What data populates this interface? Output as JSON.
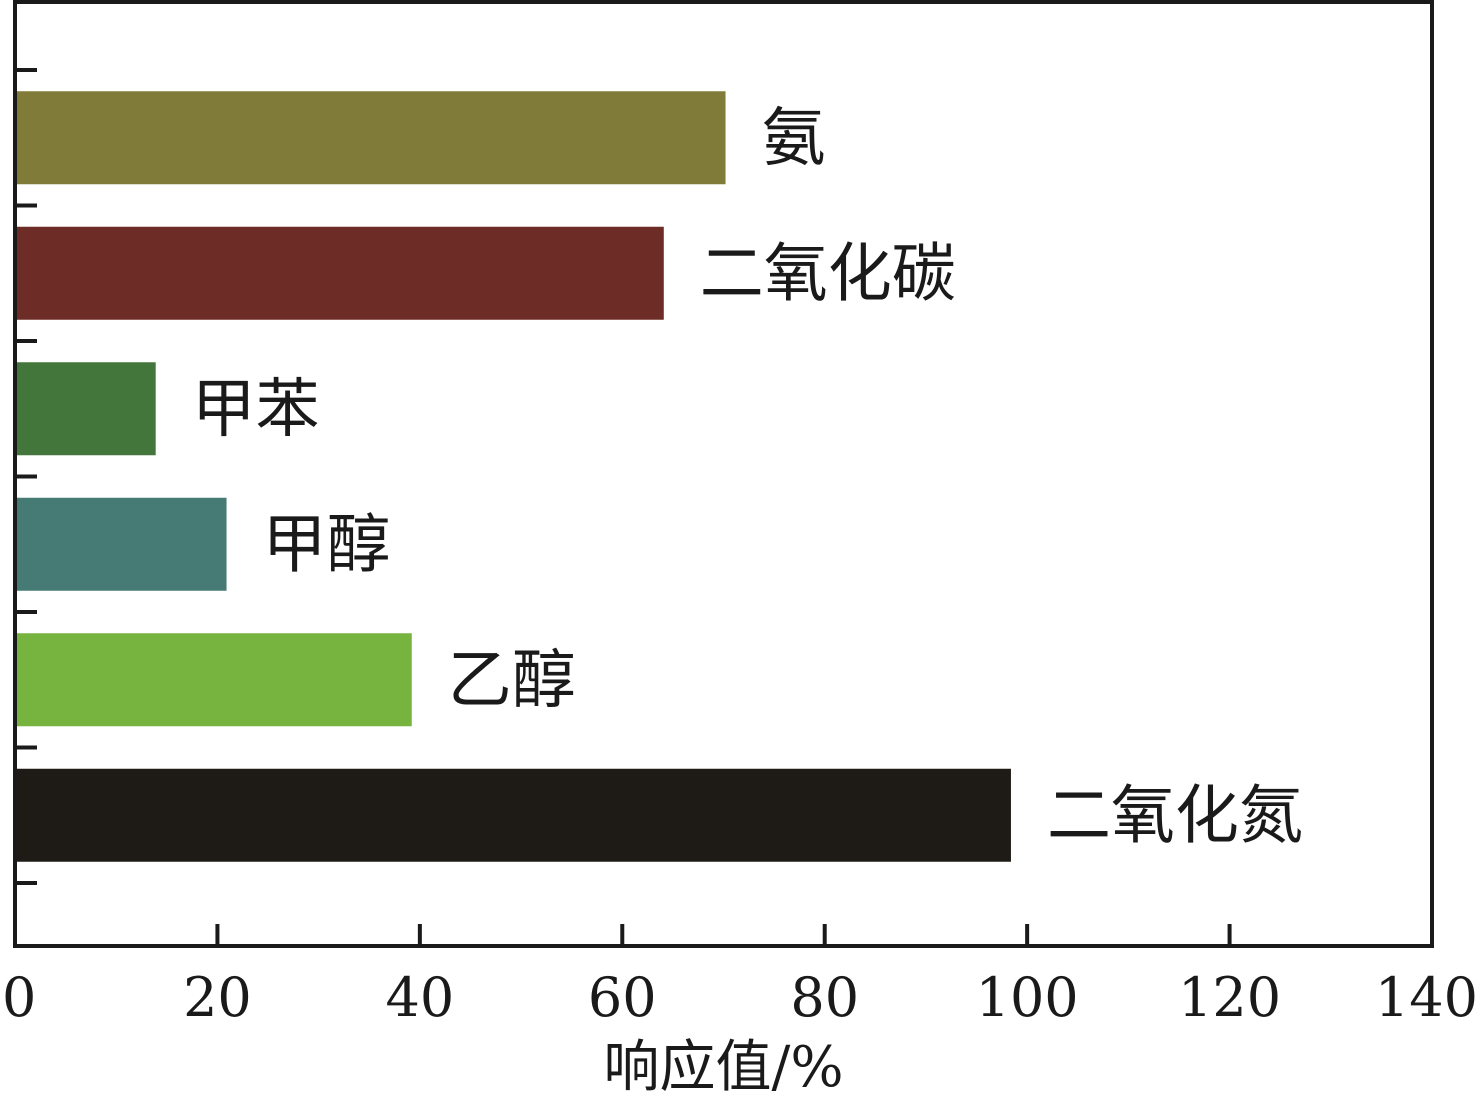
{
  "chart_data": {
    "type": "bar",
    "orientation": "horizontal",
    "categories": [
      "氨",
      "二氧化碳",
      "甲苯",
      "甲醇",
      "乙醇",
      "二氧化氮"
    ],
    "values": [
      70.2,
      64.1,
      13.9,
      20.9,
      39.2,
      98.4
    ],
    "colors": [
      "#817b39",
      "#6d2d26",
      "#43763a",
      "#467a74",
      "#77b43f",
      "#1e1b17"
    ],
    "xlabel": "响应值/%",
    "ylabel": "",
    "xlim": [
      0,
      140
    ],
    "xticks": [
      "0",
      "20",
      "40",
      "60",
      "80",
      "100",
      "120",
      "140"
    ],
    "grid": false,
    "legend": "none"
  }
}
